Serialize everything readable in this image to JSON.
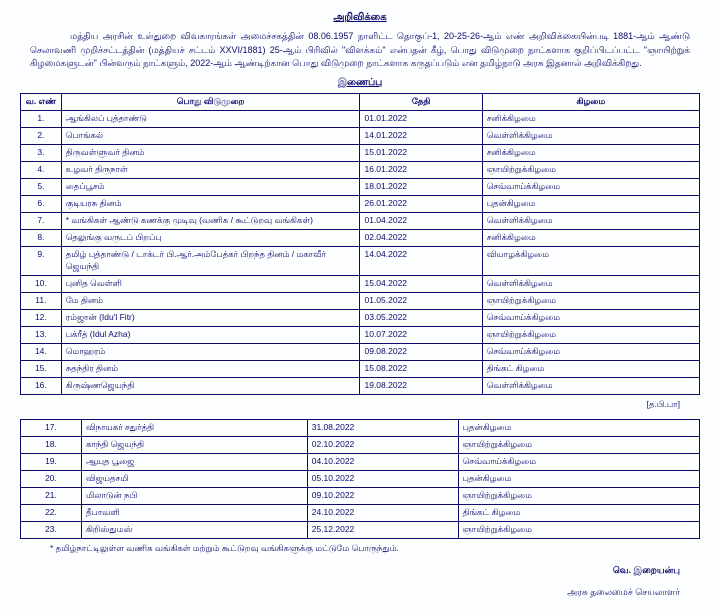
{
  "doc": {
    "title": "அறிவிக்கை",
    "paragraph": "மத்திய அரசின் உள்துறை விவகாரங்கள் அமைச்சகத்தின் 08.06.1957 நாளிட்ட தொகுப்-1, 20-25-26-ஆம் எண் அறிவிக்கையின்படி 1881-ஆம் ஆண்டு செலாவணி முறிச்சட்டத்தின் (மத்தியச் சட்டம் XXVI/1881) 25-ஆம் பிரிவில் \"விளக்கம்\" என்பதன் கீழ், பொது விடுமுறை நாட்களாக குறிப்பிடப்பட்ட \"ஞாயிற்றுக் கிழமைகளுடன்\" பின்வரும் நாட்களும், 2022-ஆம் ஆண்டிற்கான பொது விடுமுறை நாட்களாக கருதப்படும் என தமிழ்நாடு அரசு இதனால் அறிவிக்கிறது.",
    "subtitle": "இணைப்பு",
    "headers": {
      "sn": "வ. எண்",
      "holiday": "பொது விடுமுறை",
      "date": "தேதி",
      "day": "கிழமை"
    },
    "rows1": [
      {
        "sn": "1.",
        "name": "ஆங்கிலப் புத்தாண்டு",
        "date": "01.01.2022",
        "day": "சனிக்கிழமை"
      },
      {
        "sn": "2.",
        "name": "பொங்கல்",
        "date": "14.01.2022",
        "day": "வெள்ளிக்கிழமை"
      },
      {
        "sn": "3.",
        "name": "திருவள்ளுவர் தினம்",
        "date": "15.01.2022",
        "day": "சனிக்கிழமை"
      },
      {
        "sn": "4.",
        "name": "உழவர் திருநாள்",
        "date": "16.01.2022",
        "day": "ஞாயிற்றுக்கிழமை"
      },
      {
        "sn": "5.",
        "name": "தைப்பூசம்",
        "date": "18.01.2022",
        "day": "செவ்வாய்க்கிழமை"
      },
      {
        "sn": "6.",
        "name": "குடியரசு தினம்",
        "date": "26.01.2022",
        "day": "புதன்கிழமை"
      },
      {
        "sn": "7.",
        "name": "* வங்கிகள் ஆண்டு கணக்கு முடிவு (வணிக / கூட்டுறவு வங்கிகள்)",
        "date": "01.04.2022",
        "day": "வெள்ளிக்கிழமை"
      },
      {
        "sn": "8.",
        "name": "தெலுங்கு வருடப் பிறப்பு",
        "date": "02.04.2022",
        "day": "சனிக்கிழமை"
      },
      {
        "sn": "9.",
        "name": "தமிழ் புத்தாண்டு / டாக்டர் பி.ஆர்.அம்பேத்கர் பிறந்த தினம் / மகாவீர் ஜெயந்தி",
        "date": "14.04.2022",
        "day": "வியாழக்கிழமை"
      },
      {
        "sn": "10.",
        "name": "புனித வெள்ளி",
        "date": "15.04.2022",
        "day": "வெள்ளிக்கிழமை"
      },
      {
        "sn": "11.",
        "name": "மே தினம்",
        "date": "01.05.2022",
        "day": "ஞாயிற்றுக்கிழமை"
      },
      {
        "sn": "12.",
        "name": "ரம்ஜான் (Idu'l Fitr)",
        "date": "03.05.2022",
        "day": "செவ்வாய்க்கிழமை"
      },
      {
        "sn": "13.",
        "name": "பக்ரீத் (Idul Azha)",
        "date": "10.07.2022",
        "day": "ஞாயிற்றுக்கிழமை"
      },
      {
        "sn": "14.",
        "name": "மொஹரம்",
        "date": "09.08.2022",
        "day": "செவ்வாய்க்கிழமை"
      },
      {
        "sn": "15.",
        "name": "சுதந்திர தினம்",
        "date": "15.08.2022",
        "day": "திங்கட் கிழமை"
      },
      {
        "sn": "16.",
        "name": "கிருஷ்ணஜெயந்தி",
        "date": "19.08.2022",
        "day": "வெள்ளிக்கிழமை"
      }
    ],
    "cont": "[த.பி.பா]",
    "rows2": [
      {
        "sn": "17.",
        "name": "விநாயகர் சதுர்த்தி",
        "date": "31.08.2022",
        "day": "புதன்கிழமை"
      },
      {
        "sn": "18.",
        "name": "காந்தி ஜெயந்தி",
        "date": "02.10.2022",
        "day": "ஞாயிற்றுக்கிழமை"
      },
      {
        "sn": "19.",
        "name": "ஆயுத பூஜை",
        "date": "04.10.2022",
        "day": "செவ்வாய்க்கிழமை"
      },
      {
        "sn": "20.",
        "name": "விஜயதசமி",
        "date": "05.10.2022",
        "day": "புதன்கிழமை"
      },
      {
        "sn": "21.",
        "name": "மிலாடுன் நபி",
        "date": "09.10.2022",
        "day": "ஞாயிற்றுக்கிழமை"
      },
      {
        "sn": "22.",
        "name": "தீபாவளி",
        "date": "24.10.2022",
        "day": "திங்கட் கிழமை"
      },
      {
        "sn": "23.",
        "name": "கிறிஸ்துமஸ்",
        "date": "25.12.2022",
        "day": "ஞாயிற்றுக்கிழமை"
      }
    ],
    "footnote": "* தமிழ்நாட்டிலுள்ள வணிக வங்கிகள் மற்றும் கூட்டுறவு வங்கிகளுக்கு மட்டுமே பொருந்தும்.",
    "sig_name": "வெ. இறையன்பு",
    "sig_title": "அரசு தலைமைச் செயலாளர்"
  }
}
